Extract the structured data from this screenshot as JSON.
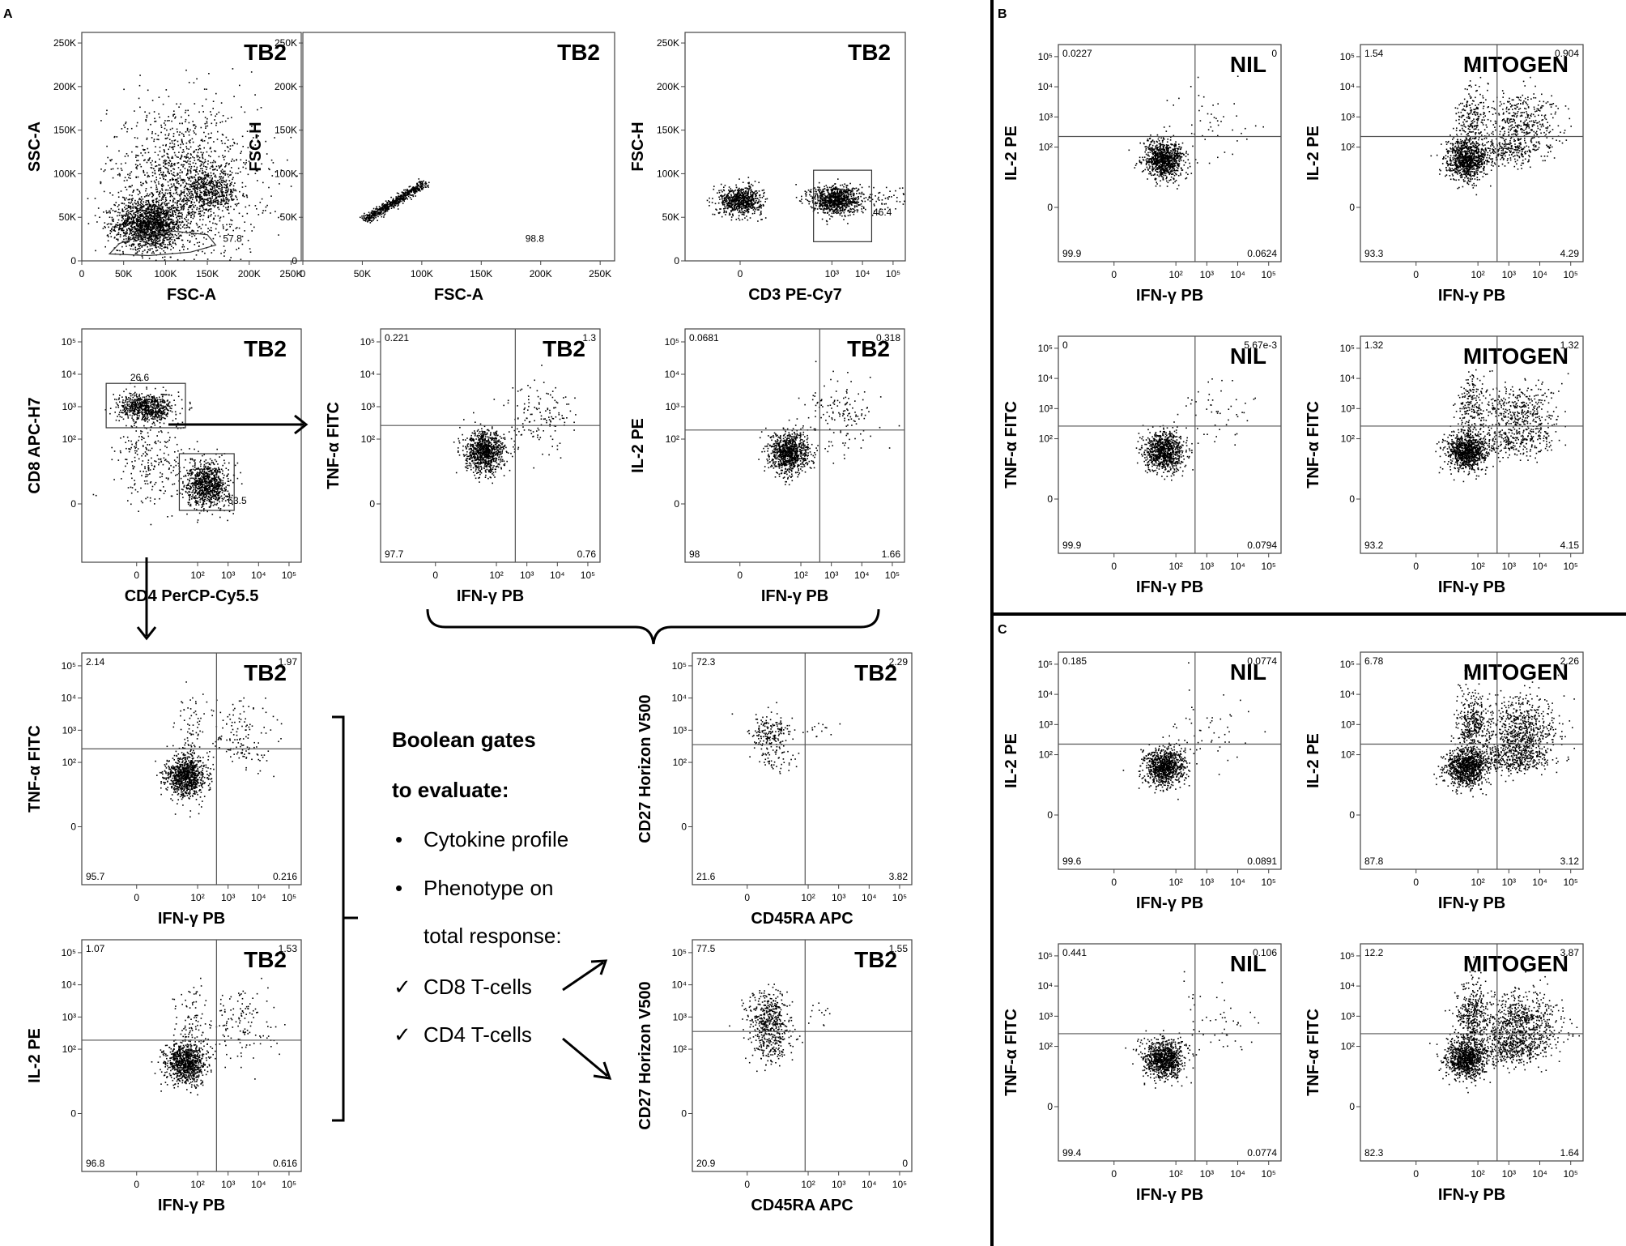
{
  "figure": {
    "panel_labels": [
      "A",
      "B",
      "C"
    ],
    "boolean_text": {
      "line1": "Boolean  gates",
      "line2": "to evaluate:",
      "bullet1": "Cytokine profile",
      "bullet2": "Phenotype on",
      "bullet2b": "total response:",
      "check1": "CD8 T-cells",
      "check2": "CD4 T-cells",
      "bullet_char": "•",
      "check_char": "✓"
    }
  },
  "chart_data": [
    {
      "id": "A1",
      "type": "scatter",
      "panel": "A",
      "title": "TB2",
      "xlabel": "FSC-A",
      "ylabel": "SSC-A",
      "xscale": "linear",
      "yscale": "linear",
      "xlim": [
        0,
        262144
      ],
      "ylim": [
        0,
        262144
      ],
      "xticks": [
        {
          "v": 0,
          "label": "0"
        },
        {
          "v": 50000,
          "label": "50K"
        },
        {
          "v": 100000,
          "label": "100K"
        },
        {
          "v": 150000,
          "label": "150K"
        },
        {
          "v": 200000,
          "label": "200K"
        },
        {
          "v": 250000,
          "label": "250K"
        }
      ],
      "yticks": [
        {
          "v": 0,
          "label": "0"
        },
        {
          "v": 50000,
          "label": "50K"
        },
        {
          "v": 100000,
          "label": "100K"
        },
        {
          "v": 150000,
          "label": "150K"
        },
        {
          "v": 200000,
          "label": "200K"
        },
        {
          "v": 250000,
          "label": "250K"
        }
      ],
      "annotations": [
        {
          "text": "57.8",
          "x": 180000,
          "y": 22000
        }
      ],
      "gate": {
        "kind": "poly",
        "points": [
          [
            33000,
            8000
          ],
          [
            45000,
            20000
          ],
          [
            70000,
            28000
          ],
          [
            110000,
            34000
          ],
          [
            150000,
            30000
          ],
          [
            160000,
            18000
          ],
          [
            130000,
            10000
          ],
          [
            80000,
            6000
          ]
        ]
      }
    },
    {
      "id": "A2",
      "type": "scatter",
      "panel": "A",
      "title": "TB2",
      "xlabel": "FSC-A",
      "ylabel": "FSC-H",
      "xscale": "linear",
      "yscale": "linear",
      "xlim": [
        0,
        262144
      ],
      "ylim": [
        0,
        262144
      ],
      "xticks": [
        {
          "v": 0,
          "label": "0"
        },
        {
          "v": 50000,
          "label": "50K"
        },
        {
          "v": 100000,
          "label": "100K"
        },
        {
          "v": 150000,
          "label": "150K"
        },
        {
          "v": 200000,
          "label": "200K"
        },
        {
          "v": 250000,
          "label": "250K"
        }
      ],
      "yticks": [
        {
          "v": 0,
          "label": "0"
        },
        {
          "v": 50000,
          "label": "50K"
        },
        {
          "v": 100000,
          "label": "100K"
        },
        {
          "v": 150000,
          "label": "150K"
        },
        {
          "v": 200000,
          "label": "200K"
        },
        {
          "v": 250000,
          "label": "250K"
        }
      ],
      "annotations": [
        {
          "text": "98.8",
          "x": 195000,
          "y": 22000
        }
      ]
    },
    {
      "id": "A3",
      "type": "scatter",
      "panel": "A",
      "title": "TB2",
      "xlabel": "CD3 PE-Cy7",
      "ylabel": "FSC-H",
      "xscale": "logicle",
      "yscale": "linear",
      "xlim": [
        -1.8,
        5.4
      ],
      "ylim": [
        0,
        262144
      ],
      "xticks": [
        {
          "v": 0,
          "label": "0"
        },
        {
          "v": 3,
          "label": "10³"
        },
        {
          "v": 4,
          "label": "10⁴"
        },
        {
          "v": 5,
          "label": "10⁵"
        }
      ],
      "yticks": [
        {
          "v": 0,
          "label": "0"
        },
        {
          "v": 50000,
          "label": "50K"
        },
        {
          "v": 100000,
          "label": "100K"
        },
        {
          "v": 150000,
          "label": "150K"
        },
        {
          "v": 200000,
          "label": "200K"
        },
        {
          "v": 250000,
          "label": "250K"
        }
      ],
      "annotations": [
        {
          "text": "46.4",
          "x": 4.65,
          "y": 52000
        }
      ],
      "gate": {
        "kind": "rect",
        "x0": 2.4,
        "x1": 4.3,
        "y0": 22000,
        "y1": 104000
      }
    },
    {
      "id": "A4",
      "type": "scatter",
      "panel": "A",
      "title": "TB2",
      "xlabel": "CD4 PerCP-Cy5.5",
      "ylabel": "CD8 APC-H7",
      "xscale": "logicle",
      "yscale": "logicle",
      "xlim": [
        -1.8,
        5.4
      ],
      "ylim": [
        -1.8,
        5.4
      ],
      "xticks": [
        {
          "v": 0,
          "label": "0"
        },
        {
          "v": 2,
          "label": "10²"
        },
        {
          "v": 3,
          "label": "10³"
        },
        {
          "v": 4,
          "label": "10⁴"
        },
        {
          "v": 5,
          "label": "10⁵"
        }
      ],
      "yticks": [
        {
          "v": 0,
          "label": "0"
        },
        {
          "v": 2,
          "label": "10²"
        },
        {
          "v": 3,
          "label": "10³"
        },
        {
          "v": 4,
          "label": "10⁴"
        },
        {
          "v": 5,
          "label": "10⁵"
        }
      ],
      "annotations": [
        {
          "text": "26.6",
          "x": 0.1,
          "y": 3.8
        },
        {
          "text": "63.5",
          "x": 3.3,
          "y": 0.0
        }
      ],
      "gates": [
        {
          "kind": "rect",
          "x0": -1.0,
          "x1": 1.6,
          "y0": 2.35,
          "y1": 3.72
        },
        {
          "kind": "rect",
          "x0": 1.4,
          "x1": 3.2,
          "y0": -0.2,
          "y1": 1.55
        }
      ]
    },
    {
      "id": "A5",
      "type": "scatter",
      "panel": "A",
      "title": "TB2",
      "xlabel": "IFN-γ PB",
      "ylabel": "TNF-α FITC",
      "quadrant": {
        "x": 2.62,
        "y": 2.42
      },
      "quadrant_values": {
        "ul": "0.221",
        "ur": "1.3",
        "ll": "97.7",
        "lr": "0.76"
      }
    },
    {
      "id": "A6",
      "type": "scatter",
      "panel": "A",
      "title": "TB2",
      "xlabel": "IFN-γ PB",
      "ylabel": "IL-2 PE",
      "quadrant": {
        "x": 2.62,
        "y": 2.28
      },
      "quadrant_values": {
        "ul": "0.0681",
        "ur": "0.318",
        "ll": "98",
        "lr": "1.66"
      }
    },
    {
      "id": "A7",
      "type": "scatter",
      "panel": "A",
      "title": "TB2",
      "xlabel": "IFN-γ PB",
      "ylabel": "TNF-α FITC",
      "quadrant": {
        "x": 2.62,
        "y": 2.42
      },
      "quadrant_values": {
        "ul": "2.14",
        "ur": "1.97",
        "ll": "95.7",
        "lr": "0.216"
      }
    },
    {
      "id": "A8",
      "type": "scatter",
      "panel": "A",
      "title": "TB2",
      "xlabel": "IFN-γ PB",
      "ylabel": "IL-2 PE",
      "quadrant": {
        "x": 2.62,
        "y": 2.28
      },
      "quadrant_values": {
        "ul": "1.07",
        "ur": "1.53",
        "ll": "96.8",
        "lr": "0.616"
      }
    },
    {
      "id": "A9",
      "type": "scatter",
      "panel": "A",
      "title": "TB2",
      "xlabel": "CD45RA APC",
      "ylabel": "CD27 Horizon V500",
      "quadrant": {
        "x": 1.9,
        "y": 2.55
      },
      "quadrant_values": {
        "ul": "72.3",
        "ur": "2.29",
        "ll": "21.6",
        "lr": "3.82"
      }
    },
    {
      "id": "A10",
      "type": "scatter",
      "panel": "A",
      "title": "TB2",
      "xlabel": "CD45RA APC",
      "ylabel": "CD27 Horizon V500",
      "quadrant": {
        "x": 1.9,
        "y": 2.55
      },
      "quadrant_values": {
        "ul": "77.5",
        "ur": "1.55",
        "ll": "20.9",
        "lr": "0"
      }
    },
    {
      "id": "B1",
      "type": "scatter",
      "panel": "B",
      "title": "NIL",
      "xlabel": "IFN-γ PB",
      "ylabel": "IL-2 PE",
      "quadrant": {
        "x": 2.62,
        "y": 2.35
      },
      "quadrant_values": {
        "ul": "0.0227",
        "ur": "0",
        "ll": "99.9",
        "lr": "0.0624"
      }
    },
    {
      "id": "B2",
      "type": "scatter",
      "panel": "B",
      "title": "MITOGEN",
      "xlabel": "IFN-γ PB",
      "ylabel": "IL-2 PE",
      "quadrant": {
        "x": 2.62,
        "y": 2.35
      },
      "quadrant_values": {
        "ul": "1.54",
        "ur": "0.904",
        "ll": "93.3",
        "lr": "4.29"
      }
    },
    {
      "id": "B3",
      "type": "scatter",
      "panel": "B",
      "title": "NIL",
      "xlabel": "IFN-γ PB",
      "ylabel": "TNF-α FITC",
      "quadrant": {
        "x": 2.62,
        "y": 2.42
      },
      "quadrant_values": {
        "ul": "0",
        "ur": "5.67e-3",
        "ll": "99.9",
        "lr": "0.0794"
      }
    },
    {
      "id": "B4",
      "type": "scatter",
      "panel": "B",
      "title": "MITOGEN",
      "xlabel": "IFN-γ PB",
      "ylabel": "TNF-α FITC",
      "quadrant": {
        "x": 2.62,
        "y": 2.42
      },
      "quadrant_values": {
        "ul": "1.32",
        "ur": "1.32",
        "ll": "93.2",
        "lr": "4.15"
      }
    },
    {
      "id": "C1",
      "type": "scatter",
      "panel": "C",
      "title": "NIL",
      "xlabel": "IFN-γ PB",
      "ylabel": "IL-2 PE",
      "quadrant": {
        "x": 2.62,
        "y": 2.35
      },
      "quadrant_values": {
        "ul": "0.185",
        "ur": "0.0774",
        "ll": "99.6",
        "lr": "0.0891"
      }
    },
    {
      "id": "C2",
      "type": "scatter",
      "panel": "C",
      "title": "MITOGEN",
      "xlabel": "IFN-γ PB",
      "ylabel": "IL-2 PE",
      "quadrant": {
        "x": 2.62,
        "y": 2.35
      },
      "quadrant_values": {
        "ul": "6.78",
        "ur": "2.26",
        "ll": "87.8",
        "lr": "3.12"
      }
    },
    {
      "id": "C3",
      "type": "scatter",
      "panel": "C",
      "title": "NIL",
      "xlabel": "IFN-γ PB",
      "ylabel": "TNF-α FITC",
      "quadrant": {
        "x": 2.62,
        "y": 2.42
      },
      "quadrant_values": {
        "ul": "0.441",
        "ur": "0.106",
        "ll": "99.4",
        "lr": "0.0774"
      }
    },
    {
      "id": "C4",
      "type": "scatter",
      "panel": "C",
      "title": "MITOGEN",
      "xlabel": "IFN-γ PB",
      "ylabel": "TNF-α FITC",
      "quadrant": {
        "x": 2.62,
        "y": 2.42
      },
      "quadrant_values": {
        "ul": "12.2",
        "ur": "3.87",
        "ll": "82.3",
        "lr": "1.64"
      }
    }
  ]
}
